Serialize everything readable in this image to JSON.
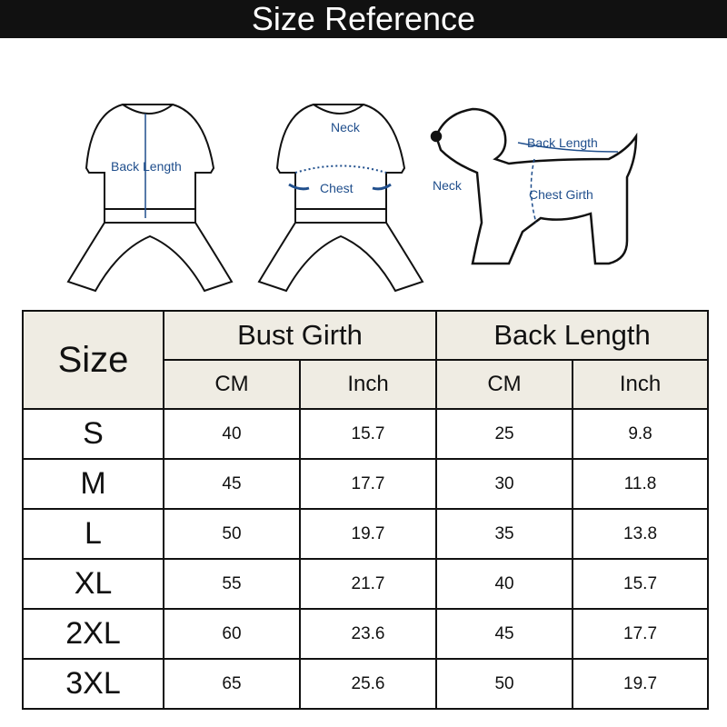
{
  "title": "Size Reference",
  "illustrations": {
    "back_view_label": "Back Length",
    "front_view_labels": [
      "Neck",
      "Chest"
    ],
    "dog_labels": [
      "Back Length",
      "Neck",
      "Chest Girth"
    ],
    "accent_color": "#1f4e8c"
  },
  "table": {
    "size_header": "Size",
    "groups": [
      "Bust Girth",
      "Back Length"
    ],
    "units": [
      "CM",
      "Inch",
      "CM",
      "Inch"
    ],
    "rows": [
      [
        "S",
        "40",
        "15.7",
        "25",
        "9.8"
      ],
      [
        "M",
        "45",
        "17.7",
        "30",
        "11.8"
      ],
      [
        "L",
        "50",
        "19.7",
        "35",
        "13.8"
      ],
      [
        "XL",
        "55",
        "21.7",
        "40",
        "15.7"
      ],
      [
        "2XL",
        "60",
        "23.6",
        "45",
        "17.7"
      ],
      [
        "3XL",
        "65",
        "25.6",
        "50",
        "19.7"
      ]
    ]
  }
}
